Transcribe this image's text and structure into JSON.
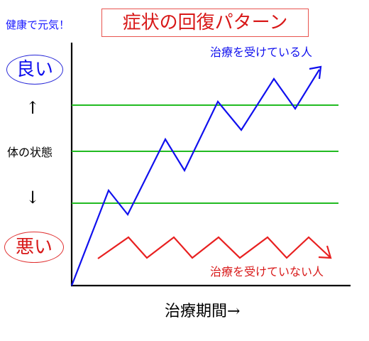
{
  "header": {
    "slogan": "健康で元気！",
    "title": "症状の回復パターン"
  },
  "scale": {
    "good_label": "良い",
    "bad_label": "悪い",
    "up_arrow": "↑",
    "down_arrow": "↓",
    "axis_label": "体の状態"
  },
  "x_axis": {
    "label": "治療期間→"
  },
  "series": {
    "treated": {
      "name": "治療を受けている人",
      "color": "#1010ee"
    },
    "untreated": {
      "name": "治療を受けていない人",
      "color": "#e82020"
    }
  },
  "guide_lines": {
    "color": "#22bb22",
    "count": 3
  }
}
